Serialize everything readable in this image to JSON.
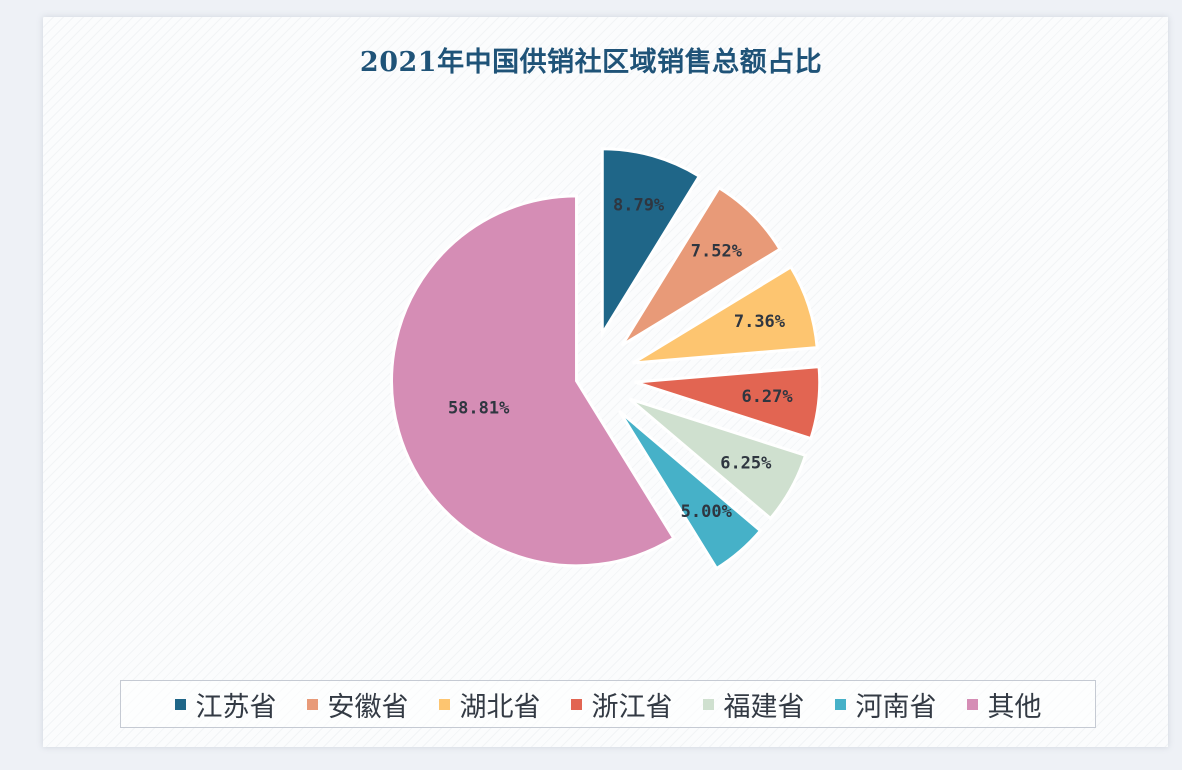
{
  "chart_data": {
    "type": "pie",
    "title": "2021年中国供销社区域销售总额占比",
    "categories": [
      "江苏省",
      "安徽省",
      "湖北省",
      "浙江省",
      "福建省",
      "河南省",
      "其他"
    ],
    "values": [
      8.79,
      7.52,
      7.36,
      6.27,
      6.25,
      5.0,
      58.81
    ],
    "labels": [
      "8.79%",
      "7.52%",
      "7.36%",
      "6.27%",
      "6.25%",
      "5.00%",
      "58.81%"
    ],
    "colors": [
      "#1f6688",
      "#e89a78",
      "#fdc570",
      "#e26552",
      "#cfe0cf",
      "#46b1c8",
      "#d58db5"
    ],
    "legend_position": "bottom",
    "exploded": true
  }
}
